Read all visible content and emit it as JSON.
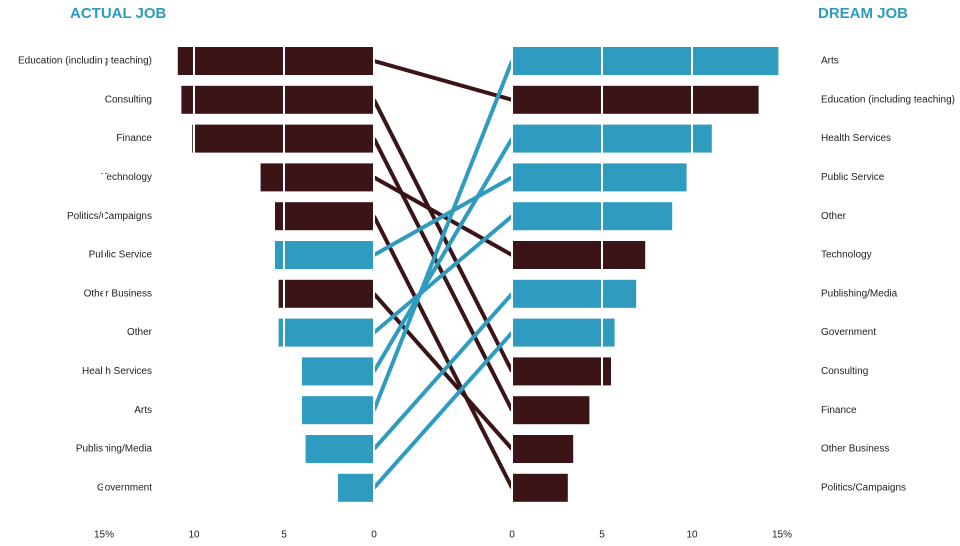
{
  "chart_data": {
    "type": "slope_bar",
    "left": {
      "title": "ACTUAL JOB",
      "categories": [
        "Education (including teaching)",
        "Consulting",
        "Finance",
        "Technology",
        "Politics/Campaigns",
        "Public Service",
        "Other Business",
        "Other",
        "Health Services",
        "Arts",
        "Publishing/Media",
        "Government"
      ],
      "values": [
        10.9,
        10.7,
        10.1,
        6.3,
        5.5,
        5.5,
        5.3,
        5.3,
        4.0,
        4.0,
        3.8,
        2.0
      ],
      "colors": [
        "#3a1416",
        "#3a1416",
        "#3a1416",
        "#3a1416",
        "#3a1416",
        "#2e9bbf",
        "#3a1416",
        "#2e9bbf",
        "#2e9bbf",
        "#2e9bbf",
        "#2e9bbf",
        "#2e9bbf"
      ],
      "xlim": [
        0,
        15
      ],
      "xticks": [
        {
          "value": 15,
          "label": "15%"
        },
        10,
        5,
        0
      ]
    },
    "right": {
      "title": "DREAM JOB",
      "categories": [
        "Arts",
        "Education (including teaching)",
        "Health Services",
        "Public Service",
        "Other",
        "Technology",
        "Publishing/Media",
        "Government",
        "Consulting",
        "Finance",
        "Other Business",
        "Politics/Campaigns"
      ],
      "values": [
        14.8,
        13.7,
        11.1,
        9.7,
        8.9,
        7.4,
        6.9,
        5.7,
        5.5,
        4.3,
        3.4,
        3.1
      ],
      "colors": [
        "#2e9bbf",
        "#3a1416",
        "#2e9bbf",
        "#2e9bbf",
        "#2e9bbf",
        "#3a1416",
        "#2e9bbf",
        "#2e9bbf",
        "#3a1416",
        "#3a1416",
        "#3a1416",
        "#3a1416"
      ],
      "xlim": [
        0,
        15
      ],
      "xticks": [
        0,
        5,
        10,
        {
          "value": 15,
          "label": "15%"
        }
      ]
    },
    "grid": true
  }
}
